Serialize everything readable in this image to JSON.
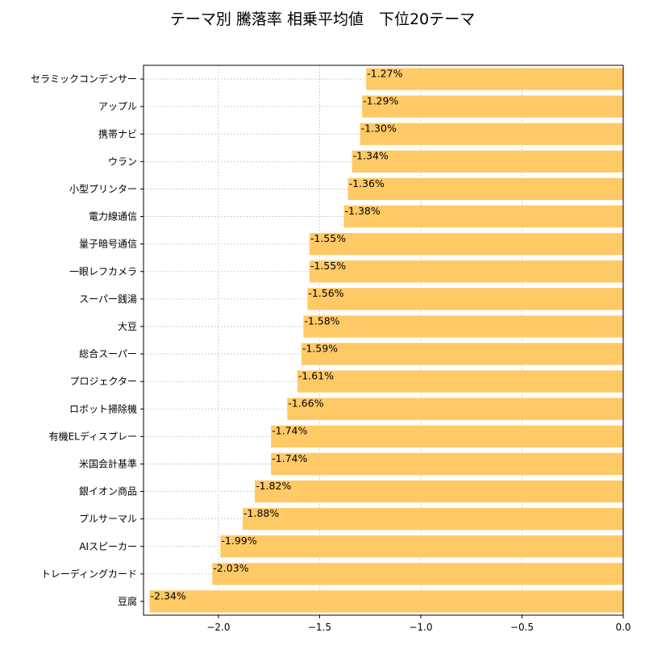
{
  "chart_data": {
    "type": "bar",
    "orientation": "horizontal",
    "title": "テーマ別 騰落率 相乗平均値　下位20テーマ",
    "xlabel": "",
    "ylabel": "",
    "xlim": [
      -2.37,
      0.0
    ],
    "xticks": [
      -2.0,
      -1.5,
      -1.0,
      -0.5,
      0.0
    ],
    "xtick_labels": [
      "−2.0",
      "−1.5",
      "−1.0",
      "−0.5",
      "0.0"
    ],
    "grid": true,
    "bar_color": "#ffc966",
    "categories": [
      "セラミックコンデンサー",
      "アップル",
      "携帯ナビ",
      "ウラン",
      "小型プリンター",
      "電力線通信",
      "量子暗号通信",
      "一眼レフカメラ",
      "スーパー銭湯",
      "大豆",
      "総合スーパー",
      "プロジェクター",
      "ロボット掃除機",
      "有機ELディスプレー",
      "米国会計基準",
      "銀イオン商品",
      "プルサーマル",
      "AIスピーカー",
      "トレーディングカード",
      "豆腐"
    ],
    "values": [
      -1.27,
      -1.29,
      -1.3,
      -1.34,
      -1.36,
      -1.38,
      -1.55,
      -1.55,
      -1.56,
      -1.58,
      -1.59,
      -1.61,
      -1.66,
      -1.74,
      -1.74,
      -1.82,
      -1.88,
      -1.99,
      -2.03,
      -2.34
    ],
    "data_labels": [
      "-1.27%",
      "-1.29%",
      "-1.30%",
      "-1.34%",
      "-1.36%",
      "-1.38%",
      "-1.55%",
      "-1.55%",
      "-1.56%",
      "-1.58%",
      "-1.59%",
      "-1.61%",
      "-1.66%",
      "-1.74%",
      "-1.74%",
      "-1.82%",
      "-1.88%",
      "-1.99%",
      "-2.03%",
      "-2.34%"
    ]
  }
}
